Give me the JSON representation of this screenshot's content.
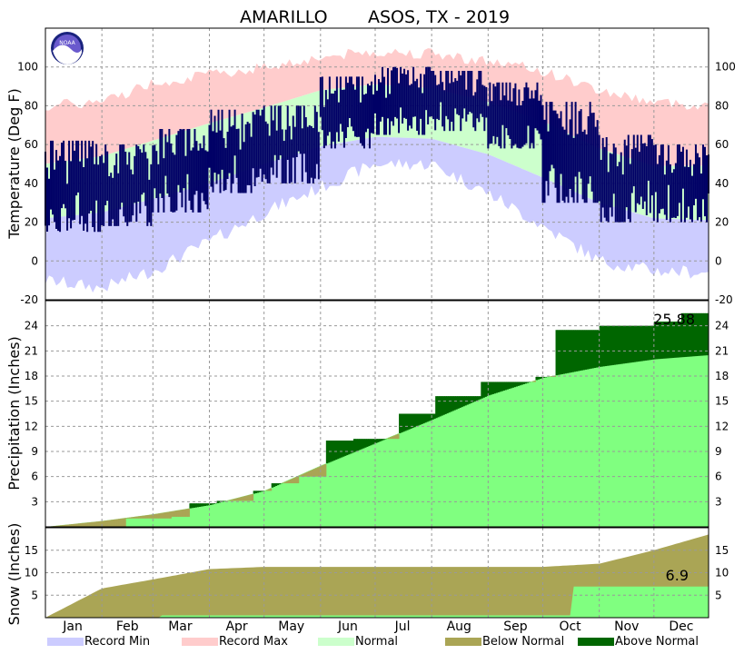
{
  "title_station": "AMARILLO",
  "title_rest": "ASOS, TX - 2019",
  "logo_text": "NOAA",
  "colors": {
    "record_min": "#ccccff",
    "record_max": "#ffcccc",
    "normal": "#ccffcc",
    "observed": "#000066",
    "below_normal": "#aaa555",
    "above_normal": "#006600",
    "normal_precip": "#80ff80"
  },
  "legend": [
    {
      "label": "Record Min",
      "color": "#ccccff"
    },
    {
      "label": "Record Max",
      "color": "#ffcccc"
    },
    {
      "label": "Normal",
      "color": "#ccffcc"
    },
    {
      "label": "Below Normal",
      "color": "#aaa555"
    },
    {
      "label": "Above Normal",
      "color": "#006600"
    }
  ],
  "months": [
    "Jan",
    "Feb",
    "Mar",
    "Apr",
    "May",
    "Jun",
    "Jul",
    "Aug",
    "Sep",
    "Oct",
    "Nov",
    "Dec"
  ],
  "chart_data": [
    {
      "type": "area",
      "panel": "temperature",
      "ylabel": "Temperature (Deg F)",
      "ylim": [
        -20,
        120
      ],
      "yticks": [
        -20,
        0,
        20,
        40,
        60,
        80,
        100
      ],
      "grid": true,
      "series": [
        {
          "name": "Record Max",
          "x_day": [
            1,
            32,
            60,
            91,
            121,
            152,
            182,
            213,
            244,
            274,
            305,
            335,
            365
          ],
          "values": [
            80,
            82,
            92,
            96,
            100,
            105,
            108,
            107,
            103,
            98,
            88,
            82,
            80
          ]
        },
        {
          "name": "Normal",
          "x_day": [
            1,
            32,
            60,
            91,
            121,
            152,
            182,
            213,
            244,
            274,
            305,
            335,
            365
          ],
          "low": [
            22,
            25,
            32,
            40,
            50,
            59,
            64,
            63,
            55,
            43,
            30,
            22,
            21
          ],
          "high": [
            50,
            54,
            62,
            71,
            79,
            88,
            91,
            89,
            82,
            72,
            58,
            49,
            49
          ]
        },
        {
          "name": "Record Min",
          "x_day": [
            1,
            32,
            60,
            91,
            121,
            152,
            182,
            213,
            244,
            274,
            305,
            335,
            365
          ],
          "values": [
            -10,
            -14,
            -5,
            10,
            25,
            38,
            50,
            50,
            35,
            18,
            0,
            -5,
            -6
          ]
        }
      ],
      "observed_range_monthly": [
        [
          15,
          62
        ],
        [
          18,
          60
        ],
        [
          25,
          68
        ],
        [
          35,
          78
        ],
        [
          40,
          80
        ],
        [
          58,
          95
        ],
        [
          65,
          100
        ],
        [
          67,
          98
        ],
        [
          58,
          92
        ],
        [
          30,
          82
        ],
        [
          20,
          65
        ],
        [
          20,
          60
        ]
      ]
    },
    {
      "type": "area",
      "panel": "precipitation",
      "ylabel": "Precipitation (Inches)",
      "ylim": [
        0,
        27
      ],
      "yticks": [
        3,
        6,
        9,
        12,
        15,
        18,
        21,
        24
      ],
      "grid": true,
      "series": [
        {
          "name": "Normal",
          "x_day": [
            1,
            32,
            60,
            91,
            121,
            152,
            182,
            213,
            244,
            274,
            305,
            335,
            365
          ],
          "values": [
            0,
            0.7,
            1.5,
            2.6,
            4.3,
            7.3,
            10.0,
            12.8,
            15.7,
            17.8,
            19.1,
            20.0,
            20.5
          ]
        },
        {
          "name": "Observed",
          "x_day": [
            1,
            45,
            70,
            80,
            95,
            115,
            125,
            140,
            155,
            170,
            195,
            215,
            240,
            270,
            281,
            305,
            335,
            350,
            365
          ],
          "values": [
            0,
            1.0,
            1.2,
            2.8,
            3.1,
            4.3,
            5.2,
            6.0,
            10.3,
            10.5,
            13.5,
            15.6,
            17.3,
            17.9,
            23.5,
            24.0,
            24.5,
            25.5,
            25.88
          ]
        }
      ],
      "total_label": "25.88"
    },
    {
      "type": "area",
      "panel": "snow",
      "ylabel": "Snow (Inches)",
      "ylim": [
        0,
        20
      ],
      "yticks": [
        5,
        10,
        15
      ],
      "grid": true,
      "series": [
        {
          "name": "Normal",
          "x_day": [
            1,
            32,
            60,
            91,
            121,
            152,
            182,
            213,
            244,
            274,
            305,
            335,
            365
          ],
          "values": [
            0,
            6.5,
            8.5,
            10.8,
            11.3,
            11.3,
            11.3,
            11.3,
            11.3,
            11.3,
            12.0,
            15.0,
            18.5
          ]
        },
        {
          "name": "Observed",
          "x_day": [
            1,
            63,
            64,
            290,
            291,
            365
          ],
          "values": [
            0,
            0,
            0.5,
            0.5,
            6.9,
            6.9
          ]
        }
      ],
      "total_label": "6.9"
    }
  ]
}
